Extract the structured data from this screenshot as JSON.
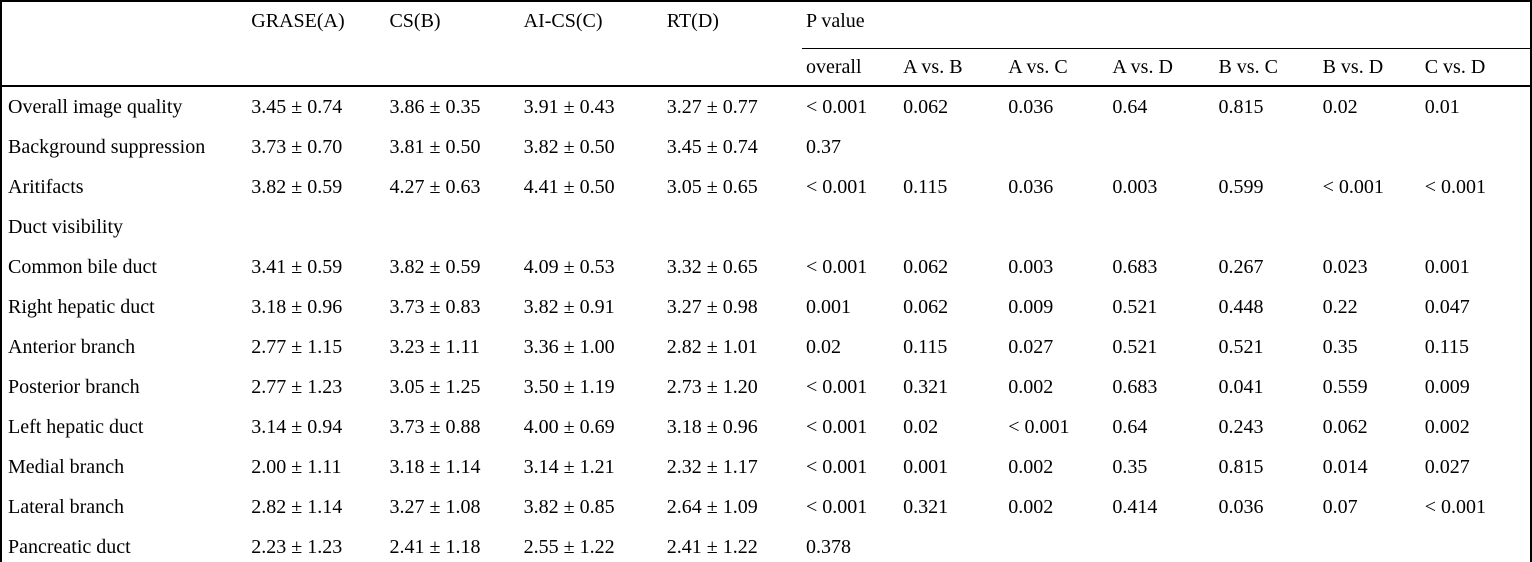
{
  "table": {
    "sequence_headers": [
      "GRASE(A)",
      "CS(B)",
      "AI-CS(C)",
      "RT(D)"
    ],
    "p_value_group_header": "P value",
    "p_value_subheaders": [
      "overall",
      "A vs. B",
      "A vs. C",
      "A vs. D",
      "B vs. C",
      "B vs. D",
      "C vs. D"
    ],
    "rows": [
      {
        "label": "Overall image quality",
        "means": [
          "3.45 ± 0.74",
          "3.86 ± 0.35",
          "3.91 ± 0.43",
          "3.27 ± 0.77"
        ],
        "p_values": [
          "< 0.001",
          "0.062",
          "0.036",
          "0.64",
          "0.815",
          "0.02",
          "0.01"
        ]
      },
      {
        "label": "Background suppression",
        "means": [
          "3.73 ± 0.70",
          "3.81 ± 0.50",
          "3.82 ± 0.50",
          "3.45 ± 0.74"
        ],
        "p_values": [
          "0.37",
          "",
          "",
          "",
          "",
          "",
          ""
        ]
      },
      {
        "label": "Aritifacts",
        "means": [
          "3.82 ± 0.59",
          "4.27 ± 0.63",
          "4.41 ± 0.50",
          "3.05 ± 0.65"
        ],
        "p_values": [
          "< 0.001",
          "0.115",
          "0.036",
          "0.003",
          "0.599",
          "< 0.001",
          "< 0.001"
        ]
      },
      {
        "label": "Duct visibility",
        "means": [
          "",
          "",
          "",
          ""
        ],
        "p_values": [
          "",
          "",
          "",
          "",
          "",
          "",
          ""
        ]
      },
      {
        "label": "Common bile duct",
        "means": [
          "3.41 ± 0.59",
          "3.82 ± 0.59",
          "4.09 ± 0.53",
          "3.32 ± 0.65"
        ],
        "p_values": [
          "< 0.001",
          "0.062",
          "0.003",
          "0.683",
          "0.267",
          "0.023",
          "0.001"
        ]
      },
      {
        "label": "Right hepatic duct",
        "means": [
          "3.18 ± 0.96",
          "3.73 ± 0.83",
          "3.82 ± 0.91",
          "3.27 ± 0.98"
        ],
        "p_values": [
          "0.001",
          "0.062",
          "0.009",
          "0.521",
          "0.448",
          "0.22",
          "0.047"
        ]
      },
      {
        "label": "Anterior branch",
        "means": [
          "2.77 ± 1.15",
          "3.23 ± 1.11",
          "3.36 ± 1.00",
          "2.82 ± 1.01"
        ],
        "p_values": [
          "0.02",
          "0.115",
          "0.027",
          "0.521",
          "0.521",
          "0.35",
          "0.115"
        ]
      },
      {
        "label": "Posterior branch",
        "means": [
          "2.77 ± 1.23",
          "3.05 ± 1.25",
          "3.50 ± 1.19",
          "2.73 ± 1.20"
        ],
        "p_values": [
          "< 0.001",
          "0.321",
          "0.002",
          "0.683",
          "0.041",
          "0.559",
          "0.009"
        ]
      },
      {
        "label": "Left hepatic duct",
        "means": [
          "3.14 ± 0.94",
          "3.73 ± 0.88",
          "4.00 ± 0.69",
          "3.18 ± 0.96"
        ],
        "p_values": [
          "< 0.001",
          "0.02",
          "< 0.001",
          "0.64",
          "0.243",
          "0.062",
          "0.002"
        ]
      },
      {
        "label": "Medial branch",
        "means": [
          "2.00 ± 1.11",
          "3.18 ± 1.14",
          "3.14 ± 1.21",
          "2.32 ± 1.17"
        ],
        "p_values": [
          "< 0.001",
          "0.001",
          "0.002",
          "0.35",
          "0.815",
          "0.014",
          "0.027"
        ]
      },
      {
        "label": "Lateral branch",
        "means": [
          "2.82 ± 1.14",
          "3.27 ± 1.08",
          "3.82 ± 0.85",
          "2.64 ± 1.09"
        ],
        "p_values": [
          "< 0.001",
          "0.321",
          "0.002",
          "0.414",
          "0.036",
          "0.07",
          "< 0.001"
        ]
      },
      {
        "label": "Pancreatic duct",
        "means": [
          "2.23 ± 1.23",
          "2.41 ± 1.18",
          "2.55 ± 1.22",
          "2.41 ± 1.22"
        ],
        "p_values": [
          "0.378",
          "",
          "",
          "",
          "",
          "",
          ""
        ]
      }
    ]
  },
  "colors": {
    "border": "#000000",
    "text": "#000000",
    "background": "#ffffff"
  }
}
